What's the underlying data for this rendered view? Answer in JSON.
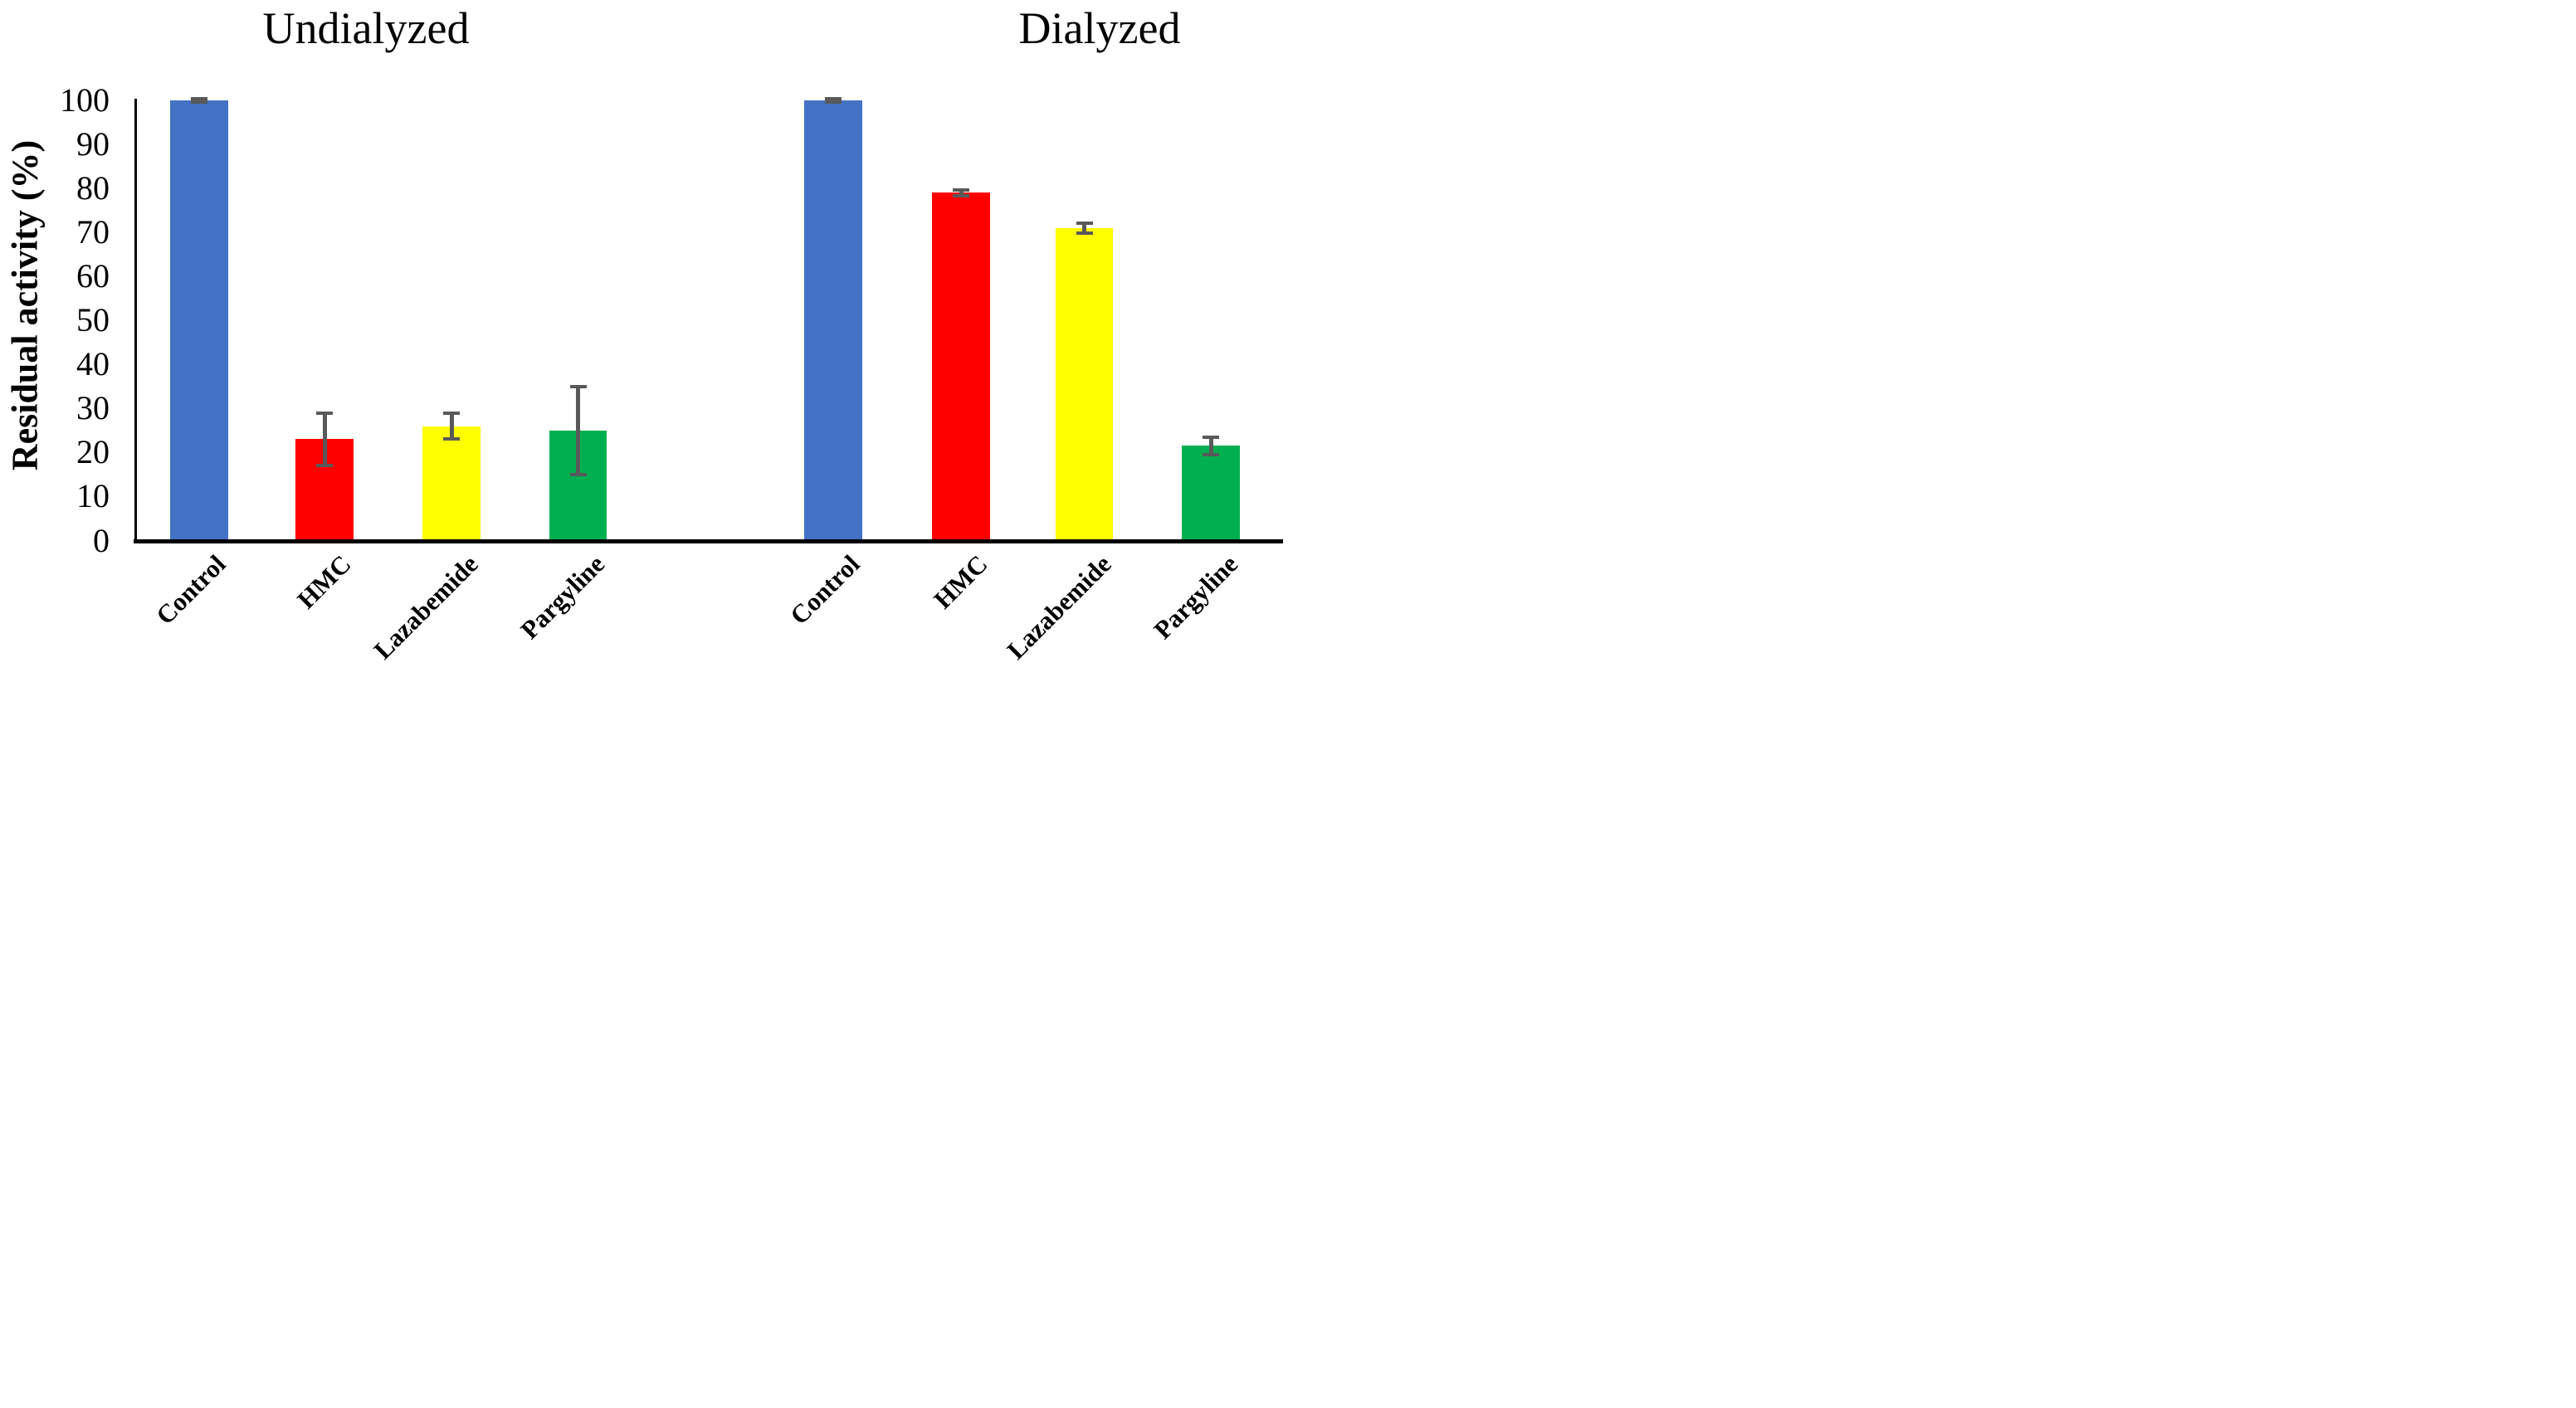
{
  "chart_data": {
    "type": "bar",
    "ylabel": "Residual activity (%)",
    "ylim": [
      0,
      100
    ],
    "yticks": [
      0,
      10,
      20,
      30,
      40,
      50,
      60,
      70,
      80,
      90,
      100
    ],
    "grid": false,
    "legend": "none",
    "error_bar_color": "#595959",
    "axis_color": "#000000",
    "groups": [
      {
        "title": "Undialyzed",
        "bars": [
          {
            "label": "Control",
            "value": 100,
            "error_plus": 0.4,
            "error_minus": 0.4,
            "color": "#4472C4"
          },
          {
            "label": "HMC",
            "value": 23,
            "error_plus": 6,
            "error_minus": 6,
            "color": "#FF0000"
          },
          {
            "label": "Lazabemide",
            "value": 26,
            "error_plus": 3,
            "error_minus": 3,
            "color": "#FFFF00"
          },
          {
            "label": "Pargyline",
            "value": 25,
            "error_plus": 10,
            "error_minus": 10,
            "color": "#00B050"
          }
        ]
      },
      {
        "title": "Dialyzed",
        "bars": [
          {
            "label": "Control",
            "value": 100,
            "error_plus": 0.4,
            "error_minus": 0.4,
            "color": "#4472C4"
          },
          {
            "label": "HMC",
            "value": 79,
            "error_plus": 0.6,
            "error_minus": 0.6,
            "color": "#FF0000"
          },
          {
            "label": "Lazabemide",
            "value": 71,
            "error_plus": 1.1,
            "error_minus": 1.2,
            "color": "#FFFF00"
          },
          {
            "label": "Pargyline",
            "value": 21.5,
            "error_plus": 1.9,
            "error_minus": 1.9,
            "color": "#00B050"
          }
        ]
      }
    ]
  }
}
